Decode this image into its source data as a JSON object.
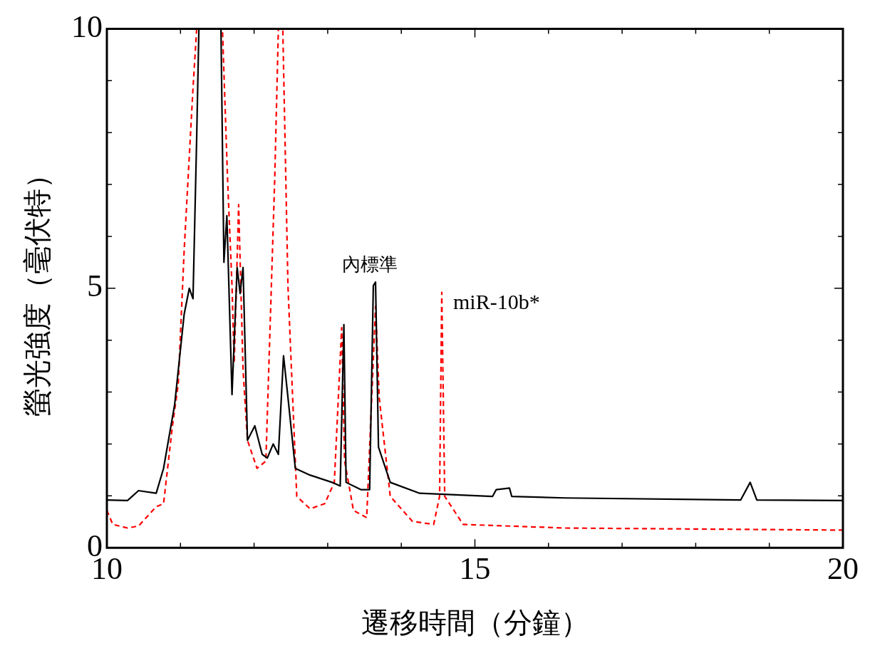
{
  "chart_data": {
    "type": "line",
    "xlabel": "遷移時間（分鐘）",
    "ylabel": "螢光強度（毫伏特）",
    "xlim": [
      10,
      20
    ],
    "ylim": [
      0,
      10
    ],
    "xticks": [
      10,
      {
        "value": 11,
        "label": null
      },
      {
        "value": 12,
        "label": null
      },
      {
        "value": 13,
        "label": null
      },
      {
        "value": 14,
        "label": null
      },
      15,
      {
        "value": 16,
        "label": null
      },
      {
        "value": 17,
        "label": null
      },
      {
        "value": 18,
        "label": null
      },
      {
        "value": 19,
        "label": null
      },
      20
    ],
    "yticks": [
      0,
      {
        "value": 1,
        "label": null
      },
      {
        "value": 2,
        "label": null
      },
      {
        "value": 3,
        "label": null
      },
      {
        "value": 4,
        "label": null
      },
      5,
      {
        "value": 6,
        "label": null
      },
      {
        "value": 7,
        "label": null
      },
      {
        "value": 8,
        "label": null
      },
      {
        "value": 9,
        "label": null
      },
      10
    ],
    "grid": false,
    "legend": false,
    "series": [
      {
        "color": "#000000",
        "line_style": "solid",
        "x": [
          10.0,
          10.28,
          10.43,
          10.67,
          10.77,
          10.92,
          11.05,
          11.12,
          11.17,
          11.22,
          11.25,
          11.55,
          11.59,
          11.63,
          11.7,
          11.77,
          11.81,
          11.85,
          11.91,
          12.01,
          12.11,
          12.18,
          12.26,
          12.33,
          12.4,
          12.46,
          12.56,
          12.76,
          13.06,
          13.17,
          13.22,
          13.25,
          13.45,
          13.57,
          13.62,
          13.65,
          13.69,
          13.85,
          14.25,
          15.24,
          15.29,
          15.47,
          15.5,
          16.23,
          18.61,
          18.74,
          18.83,
          20
        ],
        "values": [
          0.92,
          0.91,
          1.1,
          1.05,
          1.53,
          2.75,
          4.5,
          5.0,
          4.8,
          7.9,
          10,
          10,
          5.5,
          6.4,
          2.95,
          5.4,
          4.9,
          5.4,
          2.07,
          2.35,
          1.8,
          1.73,
          2.0,
          1.8,
          3.7,
          2.9,
          1.53,
          1.4,
          1.26,
          1.19,
          4.3,
          1.26,
          1.12,
          1.12,
          5.05,
          5.12,
          1.94,
          1.26,
          1.05,
          0.99,
          1.12,
          1.15,
          0.99,
          0.96,
          0.92,
          1.26,
          0.92,
          0.91
        ]
      },
      {
        "color": "#ff0000",
        "line_style": "dashed",
        "x": [
          10,
          10.08,
          10.28,
          10.43,
          10.67,
          10.77,
          10.89,
          10.97,
          11.05,
          11.17,
          11.22,
          11.57,
          11.64,
          11.7,
          11.73,
          11.79,
          11.85,
          11.91,
          12.04,
          12.16,
          12.28,
          12.33,
          12.39,
          12.46,
          12.58,
          12.76,
          12.96,
          13.09,
          13.19,
          13.23,
          13.35,
          13.53,
          13.65,
          13.7,
          13.85,
          14.15,
          14.44,
          14.52,
          14.55,
          14.59,
          14.84,
          16.23,
          20
        ],
        "values": [
          0.72,
          0.45,
          0.38,
          0.42,
          0.79,
          0.85,
          2.34,
          3.16,
          5.73,
          8.85,
          10,
          10,
          7.09,
          5.05,
          3.56,
          6.61,
          3.43,
          2.07,
          1.53,
          1.67,
          7.09,
          10,
          10,
          5.05,
          0.99,
          0.75,
          0.85,
          1.26,
          4.24,
          1.67,
          0.72,
          0.58,
          4.65,
          2.89,
          0.99,
          0.51,
          0.45,
          0.99,
          4.92,
          0.99,
          0.45,
          0.38,
          0.34
        ]
      }
    ],
    "annotations": [
      {
        "text": "內標準",
        "x": 13.65,
        "y": 5.12
      },
      {
        "text": "miR-10b*",
        "x": 14.55,
        "y": 4.92
      }
    ]
  }
}
